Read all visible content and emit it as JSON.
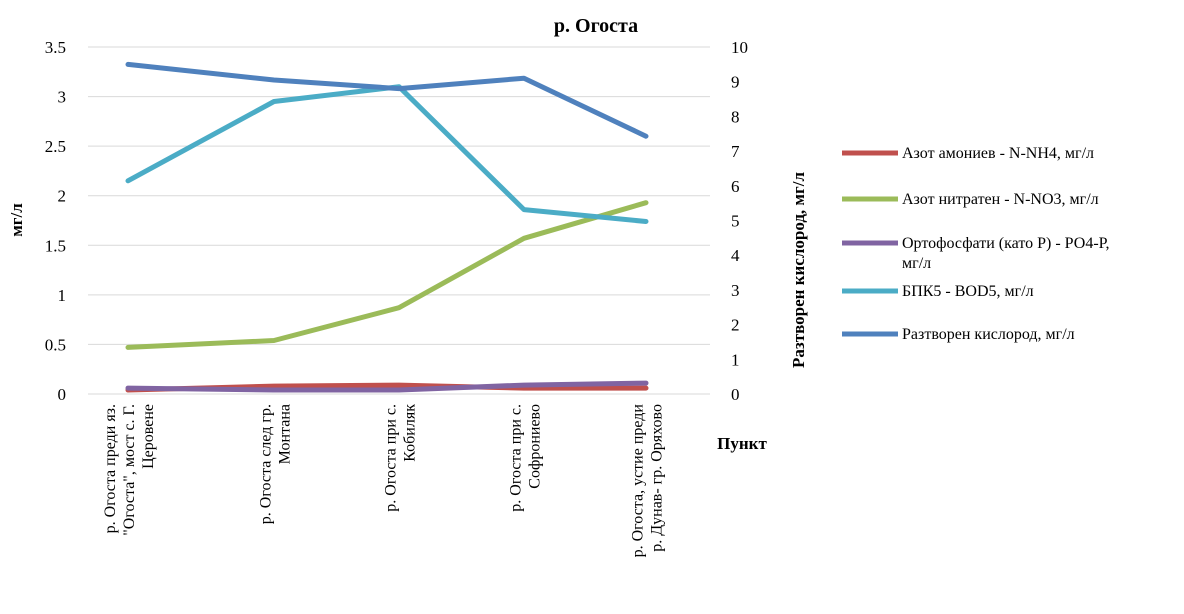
{
  "chart_data": {
    "type": "line",
    "title": "р. Огоста",
    "xlabel": "Пункт",
    "ylabel_left": "мг/л",
    "ylabel_right": "Разтворен кислород, мг/л",
    "y_left": {
      "min": 0,
      "max": 3.5,
      "step": 0.5,
      "ticks": [
        "0",
        "0.5",
        "1",
        "1.5",
        "2",
        "2.5",
        "3",
        "3.5"
      ]
    },
    "y_right": {
      "min": 0,
      "max": 10,
      "step": 1,
      "ticks": [
        "0",
        "1",
        "2",
        "3",
        "4",
        "5",
        "6",
        "7",
        "8",
        "9",
        "10"
      ]
    },
    "categories": [
      [
        "р. Огоста преди яз.",
        "\"Огоста\", мост с. Г.",
        "Церовене"
      ],
      [
        "р. Огоста след гр.",
        "Монтана"
      ],
      [
        "р. Огоста при с.",
        "Кобиляк"
      ],
      [
        "р. Огоста при с.",
        "Софрониево"
      ],
      [
        "р. Огоста, устие преди",
        "р. Дунав- гр. Оряхово"
      ]
    ],
    "series": [
      {
        "name": "Азот амониев - N-NH4, мг/л",
        "color": "#c0504d",
        "axis": "left",
        "values": [
          0.04,
          0.08,
          0.09,
          0.06,
          0.06
        ]
      },
      {
        "name": "Азот нитратен - N-NO3, мг/л",
        "color": "#9bbb59",
        "axis": "left",
        "values": [
          0.47,
          0.54,
          0.87,
          1.57,
          1.93
        ]
      },
      {
        "name": "Ортофосфати (като Р) - РО4-Р, мг/л",
        "color": "#8064a2",
        "axis": "left",
        "values": [
          0.06,
          0.04,
          0.04,
          0.09,
          0.11
        ]
      },
      {
        "name": "БПК5 - BOD5, мг/л",
        "color": "#4bacc6",
        "axis": "left",
        "values": [
          2.15,
          2.95,
          3.1,
          1.86,
          1.74
        ]
      },
      {
        "name": "Разтворен кислород, мг/л",
        "color": "#4f81bd",
        "axis": "right",
        "values": [
          9.5,
          9.05,
          8.8,
          9.1,
          7.43
        ]
      }
    ],
    "grid": true,
    "legend_position": "right"
  }
}
